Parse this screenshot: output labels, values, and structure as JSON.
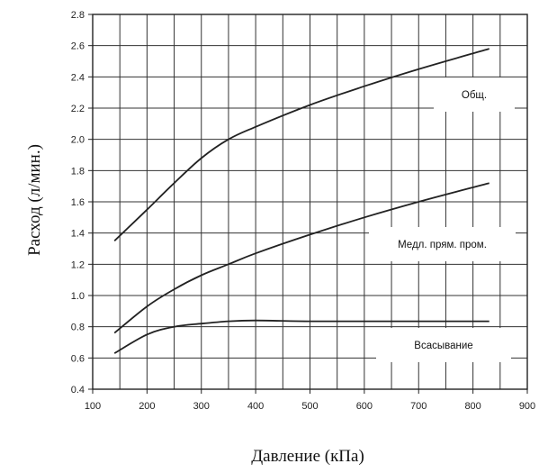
{
  "chart_data": {
    "type": "line",
    "xlabel": "Давление (кПа)",
    "ylabel": "Расход (л/мин.)",
    "xlim": [
      100,
      900
    ],
    "ylim": [
      0.4,
      2.8
    ],
    "x_ticks": [
      100,
      200,
      300,
      400,
      500,
      600,
      700,
      800,
      900
    ],
    "y_ticks": [
      "0.4",
      "0.6",
      "0.8",
      "1.0",
      "1.2",
      "1.4",
      "1.6",
      "1.8",
      "2.0",
      "2.2",
      "2.4",
      "2.6",
      "2.8"
    ],
    "grid": true,
    "minor_x_step": 50,
    "series": [
      {
        "name": "Общ.",
        "x": [
          140,
          200,
          250,
          300,
          350,
          400,
          500,
          600,
          700,
          830
        ],
        "y": [
          1.35,
          1.55,
          1.72,
          1.88,
          2.0,
          2.08,
          2.22,
          2.34,
          2.45,
          2.58
        ]
      },
      {
        "name": "Медл. прям. пром.",
        "x": [
          140,
          200,
          250,
          300,
          350,
          400,
          500,
          600,
          700,
          830
        ],
        "y": [
          0.76,
          0.93,
          1.04,
          1.13,
          1.2,
          1.27,
          1.39,
          1.5,
          1.6,
          1.72
        ]
      },
      {
        "name": "Всасывание",
        "x": [
          140,
          200,
          250,
          300,
          350,
          400,
          500,
          600,
          700,
          830
        ],
        "y": [
          0.63,
          0.75,
          0.8,
          0.82,
          0.835,
          0.84,
          0.835,
          0.835,
          0.835,
          0.835
        ]
      }
    ]
  }
}
